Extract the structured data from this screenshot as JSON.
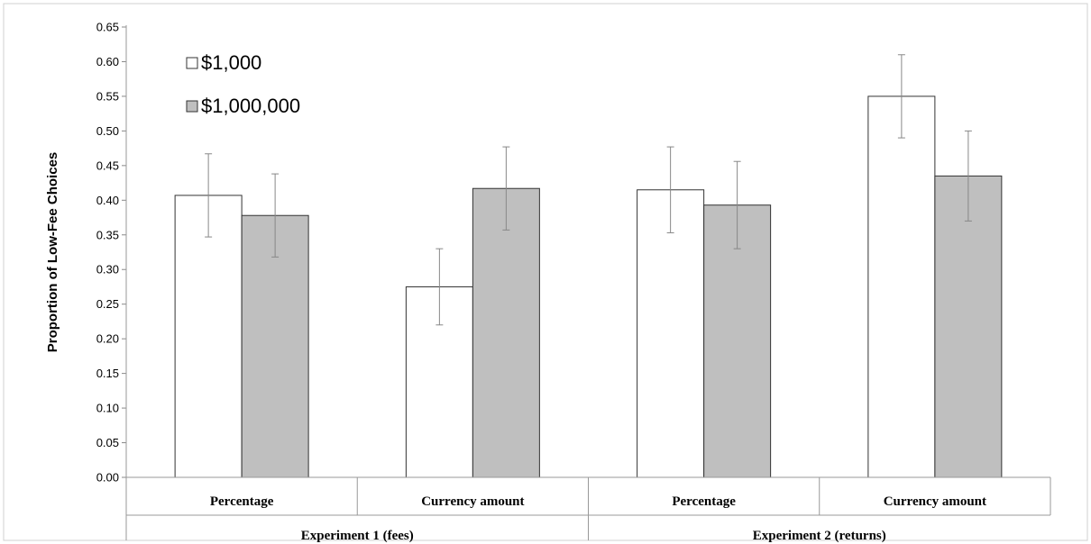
{
  "chart_data": {
    "type": "bar",
    "title": "",
    "ylabel": "Proportion of Low-Fee Choices",
    "ylim": [
      0,
      0.65
    ],
    "yticks": [
      "0.00",
      "0.05",
      "0.10",
      "0.15",
      "0.20",
      "0.25",
      "0.30",
      "0.35",
      "0.40",
      "0.45",
      "0.50",
      "0.55",
      "0.60",
      "0.65"
    ],
    "grid": false,
    "legend_position": "top-left",
    "groups": [
      {
        "label": "Experiment 1 (fees)",
        "categories": [
          "Percentage",
          "Currency amount"
        ]
      },
      {
        "label": "Experiment 2 (returns)",
        "categories": [
          "Percentage",
          "Currency amount"
        ]
      }
    ],
    "categories": [
      "Percentage",
      "Currency amount",
      "Percentage",
      "Currency amount"
    ],
    "series": [
      {
        "name": "$1,000",
        "color": "#ffffff",
        "values": [
          0.407,
          0.275,
          0.415,
          0.55
        ],
        "error": [
          0.06,
          0.055,
          0.062,
          0.06
        ]
      },
      {
        "name": "$1,000,000",
        "color": "#bfbfbf",
        "values": [
          0.378,
          0.417,
          0.393,
          0.435
        ],
        "error": [
          0.06,
          0.06,
          0.063,
          0.065
        ]
      }
    ]
  }
}
